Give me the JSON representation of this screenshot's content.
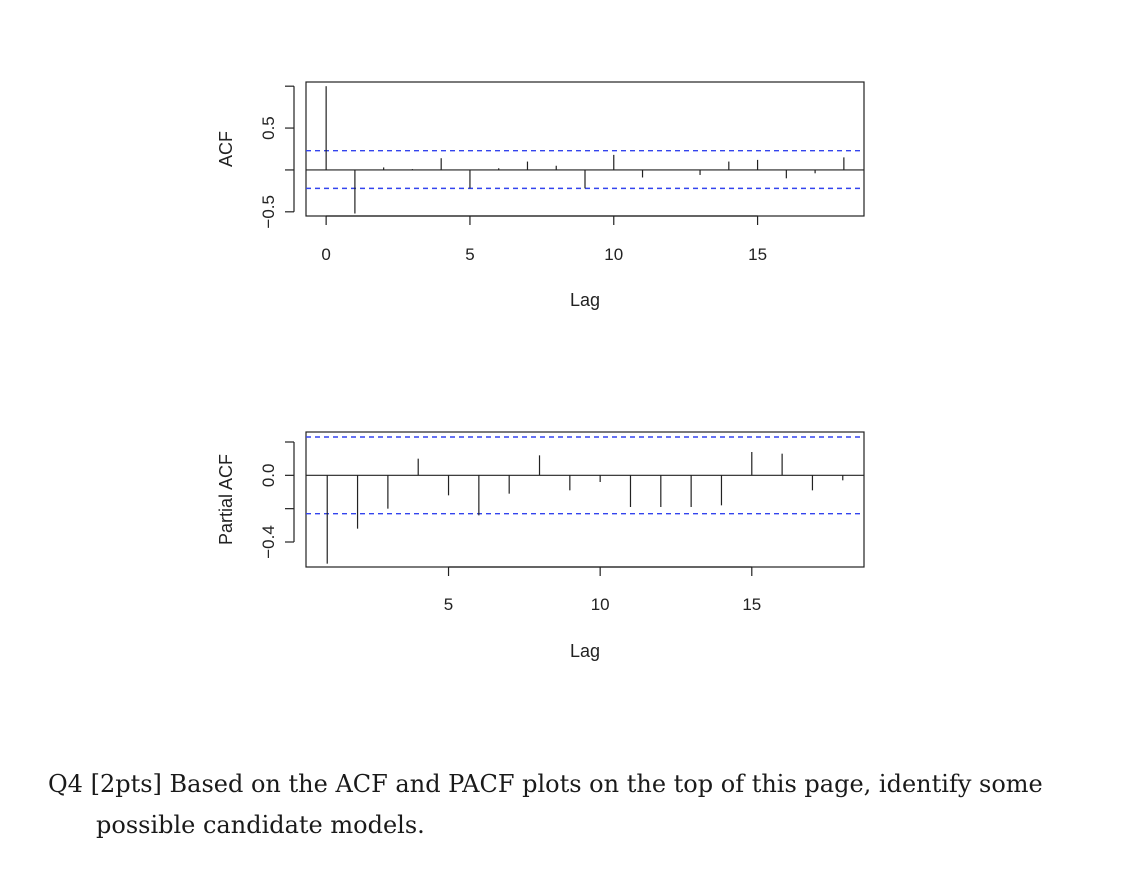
{
  "chart_data": [
    {
      "type": "bar",
      "subtype": "correlogram",
      "ylabel": "ACF",
      "xlabel": "Lag",
      "xlim": [
        -0.7,
        18.7
      ],
      "ylim": [
        -0.55,
        1.05
      ],
      "xticks": [
        "0",
        "5",
        "10",
        "15"
      ],
      "yticks": [
        "-0.5",
        "0.5"
      ],
      "grid": false,
      "lags": [
        0,
        1,
        2,
        3,
        4,
        5,
        6,
        7,
        8,
        9,
        10,
        11,
        12,
        13,
        14,
        15,
        16,
        17,
        18
      ],
      "values": [
        1.0,
        -0.52,
        0.03,
        0.01,
        0.14,
        -0.22,
        0.02,
        0.1,
        0.05,
        -0.22,
        0.18,
        -0.09,
        0.0,
        -0.06,
        0.1,
        0.12,
        -0.1,
        -0.04,
        0.15
      ],
      "confidence_bounds": [
        0.23,
        -0.22
      ],
      "bound_color": "#3344ee",
      "zero_line": true
    },
    {
      "type": "bar",
      "subtype": "correlogram",
      "ylabel": "Partial ACF",
      "xlabel": "Lag",
      "xlim": [
        0.3,
        18.7
      ],
      "ylim": [
        -0.55,
        0.26
      ],
      "xticks": [
        "5",
        "10",
        "15"
      ],
      "yticks": [
        "-0.4",
        "0.0"
      ],
      "grid": false,
      "lags": [
        1,
        2,
        3,
        4,
        5,
        6,
        7,
        8,
        9,
        10,
        11,
        12,
        13,
        14,
        15,
        16,
        17,
        18
      ],
      "values": [
        -0.53,
        -0.32,
        -0.2,
        0.1,
        -0.12,
        -0.24,
        -0.11,
        0.12,
        -0.09,
        -0.04,
        -0.19,
        -0.19,
        -0.19,
        -0.18,
        0.14,
        0.13,
        -0.09,
        -0.03
      ],
      "confidence_bounds": [
        0.23,
        -0.23
      ],
      "bound_color": "#3344ee",
      "zero_line": true
    }
  ],
  "question": {
    "line1": "Q4 [2pts] Based on the ACF and PACF plots on the top of this page, identify some",
    "line2": "possible candidate models."
  }
}
